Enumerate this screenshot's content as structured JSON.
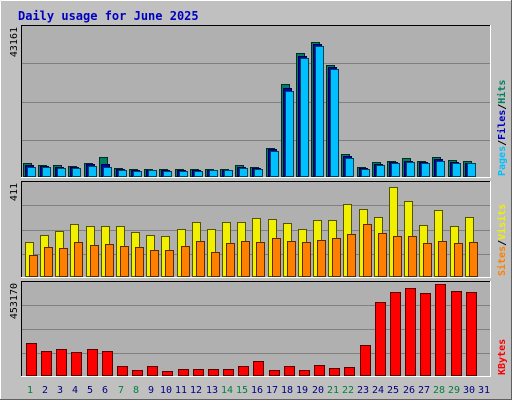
{
  "title": "Daily usage for June 2025",
  "colors": {
    "background": "#C0C0C0",
    "panel": "#B0B0B0",
    "title_text": "#0000C0",
    "hits": "#008060",
    "files": "#0000C0",
    "pages": "#00C0FF",
    "visits": "#F0F000",
    "sites": "#FF8000",
    "kbytes": "#FF0000",
    "weekend_label": "#008040",
    "weekday_label": "#000080"
  },
  "chart_data": [
    {
      "type": "bar",
      "name": "hits-files-pages",
      "categories": [
        "1",
        "2",
        "3",
        "4",
        "5",
        "6",
        "7",
        "8",
        "9",
        "10",
        "11",
        "12",
        "13",
        "14",
        "15",
        "16",
        "17",
        "18",
        "19",
        "20",
        "21",
        "22",
        "23",
        "24",
        "25",
        "26",
        "27",
        "28",
        "29",
        "30",
        "31"
      ],
      "y_max_label": "43161",
      "ylim": [
        0,
        43161
      ],
      "legend": [
        "Pages",
        "/",
        "Files",
        "/",
        "Hits"
      ],
      "series": [
        {
          "name": "Hits",
          "values": [
            3900,
            3400,
            3300,
            3200,
            4100,
            5800,
            2500,
            2300,
            2400,
            2300,
            2300,
            2200,
            2400,
            2400,
            3400,
            2900,
            8300,
            26500,
            35400,
            38700,
            31900,
            6500,
            3000,
            4200,
            4600,
            5300,
            4600,
            5700,
            4800,
            4500,
            0
          ]
        },
        {
          "name": "Files",
          "values": [
            3500,
            3100,
            3000,
            2900,
            3700,
            3600,
            2200,
            2000,
            2100,
            2000,
            2000,
            1900,
            2100,
            2100,
            3000,
            2600,
            8000,
            25500,
            34500,
            38000,
            31300,
            5900,
            2700,
            3800,
            4200,
            4600,
            4200,
            5200,
            4300,
            4100,
            0
          ]
        },
        {
          "name": "Pages",
          "values": [
            3000,
            2800,
            2700,
            2600,
            3200,
            3000,
            2000,
            1800,
            1900,
            1800,
            1800,
            1700,
            1900,
            1900,
            2600,
            2300,
            7500,
            24500,
            34000,
            37500,
            30800,
            5300,
            2400,
            3500,
            3900,
            4200,
            3900,
            4700,
            4000,
            3900,
            0
          ]
        }
      ]
    },
    {
      "type": "bar",
      "name": "visits-sites",
      "categories": [
        "1",
        "2",
        "3",
        "4",
        "5",
        "6",
        "7",
        "8",
        "9",
        "10",
        "11",
        "12",
        "13",
        "14",
        "15",
        "16",
        "17",
        "18",
        "19",
        "20",
        "21",
        "22",
        "23",
        "24",
        "25",
        "26",
        "27",
        "28",
        "29",
        "30",
        "31"
      ],
      "y_max_label": "411",
      "ylim": [
        0,
        411
      ],
      "legend": [
        "Sites",
        "/",
        "Visits"
      ],
      "series": [
        {
          "name": "Visits",
          "values": [
            150,
            183,
            200,
            231,
            221,
            221,
            221,
            194,
            183,
            178,
            206,
            240,
            206,
            240,
            240,
            254,
            251,
            234,
            208,
            248,
            245,
            314,
            296,
            261,
            388,
            330,
            226,
            290,
            220,
            259,
            0
          ]
        },
        {
          "name": "Sites",
          "values": [
            97,
            130,
            125,
            151,
            138,
            143,
            136,
            130,
            118,
            115,
            136,
            157,
            110,
            146,
            156,
            153,
            170,
            157,
            150,
            160,
            168,
            187,
            231,
            191,
            176,
            177,
            146,
            154,
            148,
            152,
            0
          ]
        }
      ]
    },
    {
      "type": "bar",
      "name": "kbytes",
      "categories": [
        "1",
        "2",
        "3",
        "4",
        "5",
        "6",
        "7",
        "8",
        "9",
        "10",
        "11",
        "12",
        "13",
        "14",
        "15",
        "16",
        "17",
        "18",
        "19",
        "20",
        "21",
        "22",
        "23",
        "24",
        "25",
        "26",
        "27",
        "28",
        "29",
        "30",
        "31"
      ],
      "y_max_label": "453170",
      "ylim": [
        0,
        453170
      ],
      "legend": [
        "KBytes"
      ],
      "series": [
        {
          "name": "KBytes",
          "values": [
            157000,
            121000,
            129000,
            115000,
            128000,
            120000,
            47000,
            27000,
            50000,
            23000,
            33000,
            33000,
            33000,
            36000,
            49000,
            71000,
            30000,
            49000,
            27000,
            51000,
            37000,
            43000,
            149000,
            355000,
            404000,
            425000,
            398000,
            443000,
            410000,
            406000,
            0
          ]
        }
      ]
    }
  ],
  "x_axis": {
    "labels": [
      "1",
      "2",
      "3",
      "4",
      "5",
      "6",
      "7",
      "8",
      "9",
      "10",
      "11",
      "12",
      "13",
      "14",
      "15",
      "16",
      "17",
      "18",
      "19",
      "20",
      "21",
      "22",
      "23",
      "24",
      "25",
      "26",
      "27",
      "28",
      "29",
      "30",
      "31"
    ],
    "weekend_days": [
      "1",
      "7",
      "8",
      "14",
      "15",
      "21",
      "22",
      "28",
      "29"
    ]
  }
}
